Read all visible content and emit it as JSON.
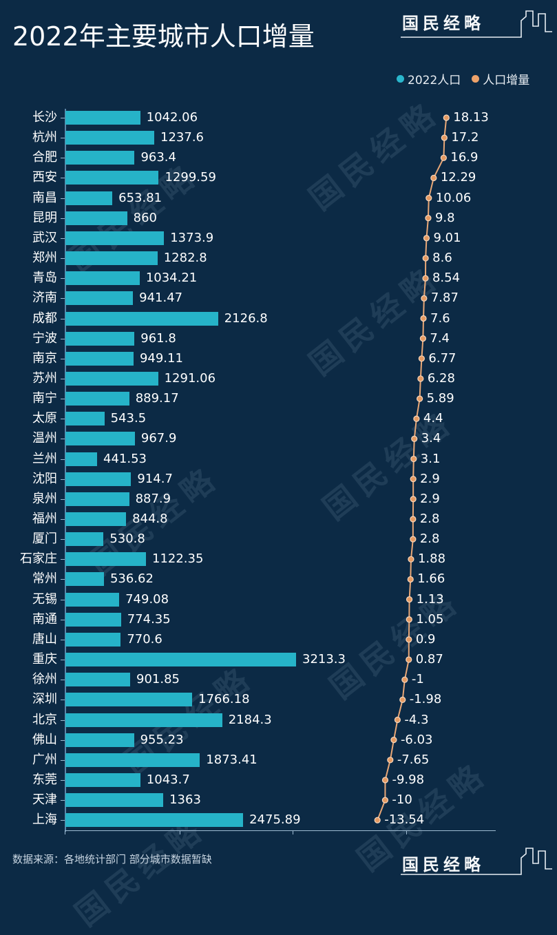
{
  "header": {
    "title": "2022年主要城市人口增量",
    "brand": "国民经略"
  },
  "legend": {
    "items": [
      {
        "label": "2022人口",
        "color": "#2ab6cc"
      },
      {
        "label": "人口增量",
        "color": "#eda26a"
      }
    ]
  },
  "footer": {
    "source": "数据来源：各地统计部门 部分城市数据暂缺",
    "brand": "国民经略"
  },
  "watermark": "国民经略",
  "colors": {
    "background": "#0c2a45",
    "bar": "#26b3c8",
    "line": "#e8a777",
    "marker": "#e59a62"
  },
  "chart_data": {
    "type": "bar+line",
    "title": "2022年主要城市人口增量",
    "xlabel": "",
    "ylabel": "",
    "orientation": "horizontal",
    "legend_position": "top-right",
    "grid": false,
    "categories": [
      "长沙",
      "杭州",
      "合肥",
      "西安",
      "南昌",
      "昆明",
      "武汉",
      "郑州",
      "青岛",
      "济南",
      "成都",
      "宁波",
      "南京",
      "苏州",
      "南宁",
      "太原",
      "温州",
      "兰州",
      "沈阳",
      "泉州",
      "福州",
      "厦门",
      "石家庄",
      "常州",
      "无锡",
      "南通",
      "唐山",
      "重庆",
      "徐州",
      "深圳",
      "北京",
      "佛山",
      "广州",
      "东莞",
      "天津",
      "上海"
    ],
    "series": [
      {
        "name": "2022人口",
        "type": "bar",
        "values": [
          1042.06,
          1237.6,
          963.4,
          1299.59,
          653.81,
          860,
          1373.9,
          1282.8,
          1034.21,
          941.47,
          2126.8,
          961.8,
          949.11,
          1291.06,
          889.17,
          543.5,
          967.9,
          441.53,
          914.7,
          887.9,
          844.8,
          530.8,
          1122.35,
          536.62,
          749.08,
          774.35,
          770.6,
          3213.3,
          901.85,
          1766.18,
          2184.3,
          955.23,
          1873.41,
          1043.7,
          1363,
          2475.89
        ],
        "labels": [
          "1042.06",
          "1237.6",
          "963.4",
          "1299.59",
          "653.81",
          "860",
          "1373.9",
          "1282.8",
          "1034.21",
          "941.47",
          "2126.8",
          "961.8",
          "949.11",
          "1291.06",
          "889.17",
          "543.5",
          "967.9",
          "441.53",
          "914.7",
          "887.9",
          "844.8",
          "530.8",
          "1122.35",
          "536.62",
          "749.08",
          "774.35",
          "770.6",
          "3213.3",
          "901.85",
          "1766.18",
          "2184.3",
          "955.23",
          "1873.41",
          "1043.7",
          "1363",
          "2475.89"
        ]
      },
      {
        "name": "人口增量",
        "type": "line",
        "values": [
          18.13,
          17.2,
          16.9,
          12.29,
          10.06,
          9.8,
          9.01,
          8.6,
          8.54,
          7.87,
          7.6,
          7.4,
          6.77,
          6.28,
          5.89,
          4.4,
          3.4,
          3.1,
          2.9,
          2.9,
          2.8,
          2.8,
          1.88,
          1.66,
          1.13,
          1.05,
          0.9,
          0.87,
          -1,
          -1.98,
          -4.3,
          -6.03,
          -7.65,
          -9.98,
          -10,
          -13.54
        ],
        "labels": [
          "18.13",
          "17.2",
          "16.9",
          "12.29",
          "10.06",
          "9.8",
          "9.01",
          "8.6",
          "8.54",
          "7.87",
          "7.6",
          "7.4",
          "6.77",
          "6.28",
          "5.89",
          "4.4",
          "3.4",
          "3.1",
          "2.9",
          "2.9",
          "2.8",
          "2.8",
          "1.88",
          "1.66",
          "1.13",
          "1.05",
          "0.9",
          "0.87",
          "-1",
          "-1.98",
          "-4.3",
          "-6.03",
          "-7.65",
          "-9.98",
          "-10",
          "-13.54"
        ]
      }
    ]
  }
}
